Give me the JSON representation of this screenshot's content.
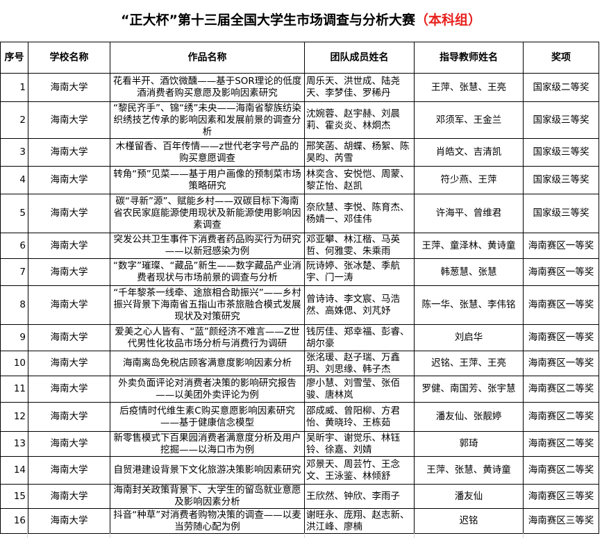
{
  "title": {
    "main": "“正大杯”第十三届全国大学生市场调查与分析大赛",
    "suffix": "（本科组）",
    "suffix_color": "#e8201c"
  },
  "headers": [
    "序号",
    "学校名称",
    "作品名称",
    "团队成员姓名",
    "指导教师姓名",
    "奖项"
  ],
  "rows": [
    {
      "no": "1",
      "school": "海南大学",
      "work": "花看半开、酒饮微醺——基于SOR理论的低度酒消费者购买意愿及影响因素研究",
      "members": "周乐天、洪世成、陆尧天、李梦佳、罗稀丹",
      "advisors": "王萍、张慧、王亮",
      "award": "国家级二等奖"
    },
    {
      "no": "2",
      "school": "海南大学",
      "work": "“黎民齐手”、锦“绣”未央——海南省黎族纺染织绣技艺传承的影响因素和发展前景的调查分析",
      "members": "沈婉蓉、赵宇赫、刘晨莉、霍炎炎、林炯杰",
      "advisors": "邓须军、王金兰",
      "award": "国家级三等奖"
    },
    {
      "no": "3",
      "school": "海南大学",
      "work": "木槿留香、百年传情——z世代老字号产品的购买意愿调查",
      "members": "邢笑菡、胡蝶、杨絮、陈昊昀、芮雪",
      "advisors": "肖皓文、吉清凯",
      "award": "国家级三等奖"
    },
    {
      "no": "4",
      "school": "海南大学",
      "work": "转角“预”见菜——基于用户画像的预制菜市场策略研究",
      "members": "林奕含、安悦恺、周蒙、黎芷怡、赵凯",
      "advisors": "符少燕、王萍",
      "award": "国家级三等奖"
    },
    {
      "no": "5",
      "school": "海南大学",
      "work": "碳“寻新”源”、赋能乡村——双碳目标下海南省农民家庭能源使用现状及新能源使用影响因素调查",
      "members": "奈欣慧、李悦、陈育杰、杨婧一、邓佳伟",
      "advisors": "许海平、曾维君",
      "award": "国家级三等奖"
    },
    {
      "no": "6",
      "school": "海南大学",
      "work": "突发公共卫生事件下消费者药品购买行为研究——以新冠感染为例",
      "members": "邓亚攀、林江楷、马英哲、何雅雯、朱乘雨",
      "advisors": "王萍、童泽林、黄诗童",
      "award": "海南赛区一等奖"
    },
    {
      "no": "7",
      "school": "海南大学",
      "work": "“数字”璀璨、“藏品”新生——数字藏品产业消费者现状与市场前景的调查与分析",
      "members": "阮诗婷、张冰楚、季航宇、门一涛",
      "advisors": "韩葱慧、张慧",
      "award": "海南赛区一等奖"
    },
    {
      "no": "8",
      "school": "海南大学",
      "work": "“千年黎茶一线牵、途旅相合助振兴”——乡村振兴背景下海南省五指山市茶旅融合模式发展现状及对策研究",
      "members": "曾诗诗、李文宸、马浩然、高姝偲、刘芃妤",
      "advisors": "陈一华、张慧、李伟铭",
      "award": "海南赛区一等奖"
    },
    {
      "no": "9",
      "school": "海南大学",
      "work": "爱美之心人皆有、“蓝”颜经济不难言——Z世代男性化妆品市场分析与消费行为调研",
      "members": "钱厉佳、郑幸福、彭睿、胡尔豪",
      "advisors": "刘启华",
      "award": "海南赛区一等奖"
    },
    {
      "no": "10",
      "school": "海南大学",
      "work": "海南离岛免税店顾客满意度影响因素分析",
      "members": "张洺瑗、赵子瑞、万鑫玥、刘思缘、韩子杰",
      "advisors": "迟铭、王萍、王亮",
      "award": "海南赛区一等奖"
    },
    {
      "no": "11",
      "school": "海南大学",
      "work": "外卖负面评论对消费者决策的影响研究报告——以美团外卖评论为例",
      "members": "廖小慧、刘雪莹、张佰骏、唐林岚",
      "advisors": "罗健、南国芳、张宇慧",
      "award": "海南赛区二等奖"
    },
    {
      "no": "12",
      "school": "海南大学",
      "work": "后疫情时代维生素C购买意愿影响因素研究 ——基于健康信念模型",
      "members": "邵成威、曾阳柳、方君怡、黄晓玲、王栋茹",
      "advisors": "潘友仙、张靓婷",
      "award": "海南赛区二等奖"
    },
    {
      "no": "13",
      "school": "海南大学",
      "work": "新零售模式下百果园消费者满意度分析及用户挖掘——以海口市为例",
      "members": "吴昕宇、谢觉乐、林钰铃、徐嘉、刘婧",
      "advisors": "郭琦",
      "award": "海南赛区二等奖"
    },
    {
      "no": "14",
      "school": "海南大学",
      "work": "自贸港建设背景下文化旅游决策影响因素研究",
      "members": "邓景天、周芸竹、王念文、王泳鉴、林倾舒",
      "advisors": "王萍、张慧、黄诗童",
      "award": "海南赛区二等奖"
    },
    {
      "no": "15",
      "school": "海南大学",
      "work": "海南封关政策背景下、大学生的留岛就业意愿及影响因素分析",
      "members": "王欣然、钟欣、李雨子",
      "advisors": "潘友仙",
      "award": "海南赛区三等奖"
    },
    {
      "no": "16",
      "school": "海南大学",
      "work": "抖音“种草”对消费者购物决策的调查——以麦当劳随心配为例",
      "members": "谢旺永、庞翔、赵志新、洪江峰、廖楠",
      "advisors": "迟铭",
      "award": "海南赛区三等奖"
    }
  ]
}
